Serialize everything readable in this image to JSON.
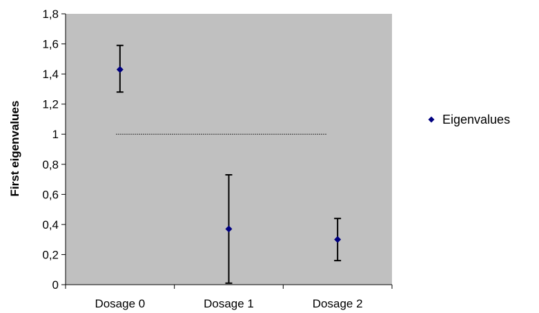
{
  "chart_data": {
    "type": "scatter",
    "title": "",
    "xlabel": "",
    "ylabel": "First eigenvalues",
    "categories": [
      "Dosage 0",
      "Dosage 1",
      "Dosage 2"
    ],
    "series": [
      {
        "name": "Eigenvalues",
        "values": [
          1.43,
          0.37,
          0.3
        ],
        "error_low": [
          1.28,
          0.01,
          0.16
        ],
        "error_high": [
          1.59,
          0.73,
          0.44
        ]
      }
    ],
    "reference_line": {
      "y": 1,
      "style": "dotted"
    },
    "ylim": [
      0,
      1.8
    ],
    "yticks": [
      "0",
      "0,2",
      "0,4",
      "0,6",
      "0,8",
      "1",
      "1,2",
      "1,4",
      "1,6",
      "1,8"
    ],
    "ytick_values": [
      0,
      0.2,
      0.4,
      0.6,
      0.8,
      1.0,
      1.2,
      1.4,
      1.6,
      1.8
    ],
    "grid": false,
    "legend_position": "right",
    "colors": {
      "plot_background": "#c0c0c0",
      "marker": "#000080",
      "errorbar": "#000000",
      "reference_line": "#333333"
    }
  }
}
